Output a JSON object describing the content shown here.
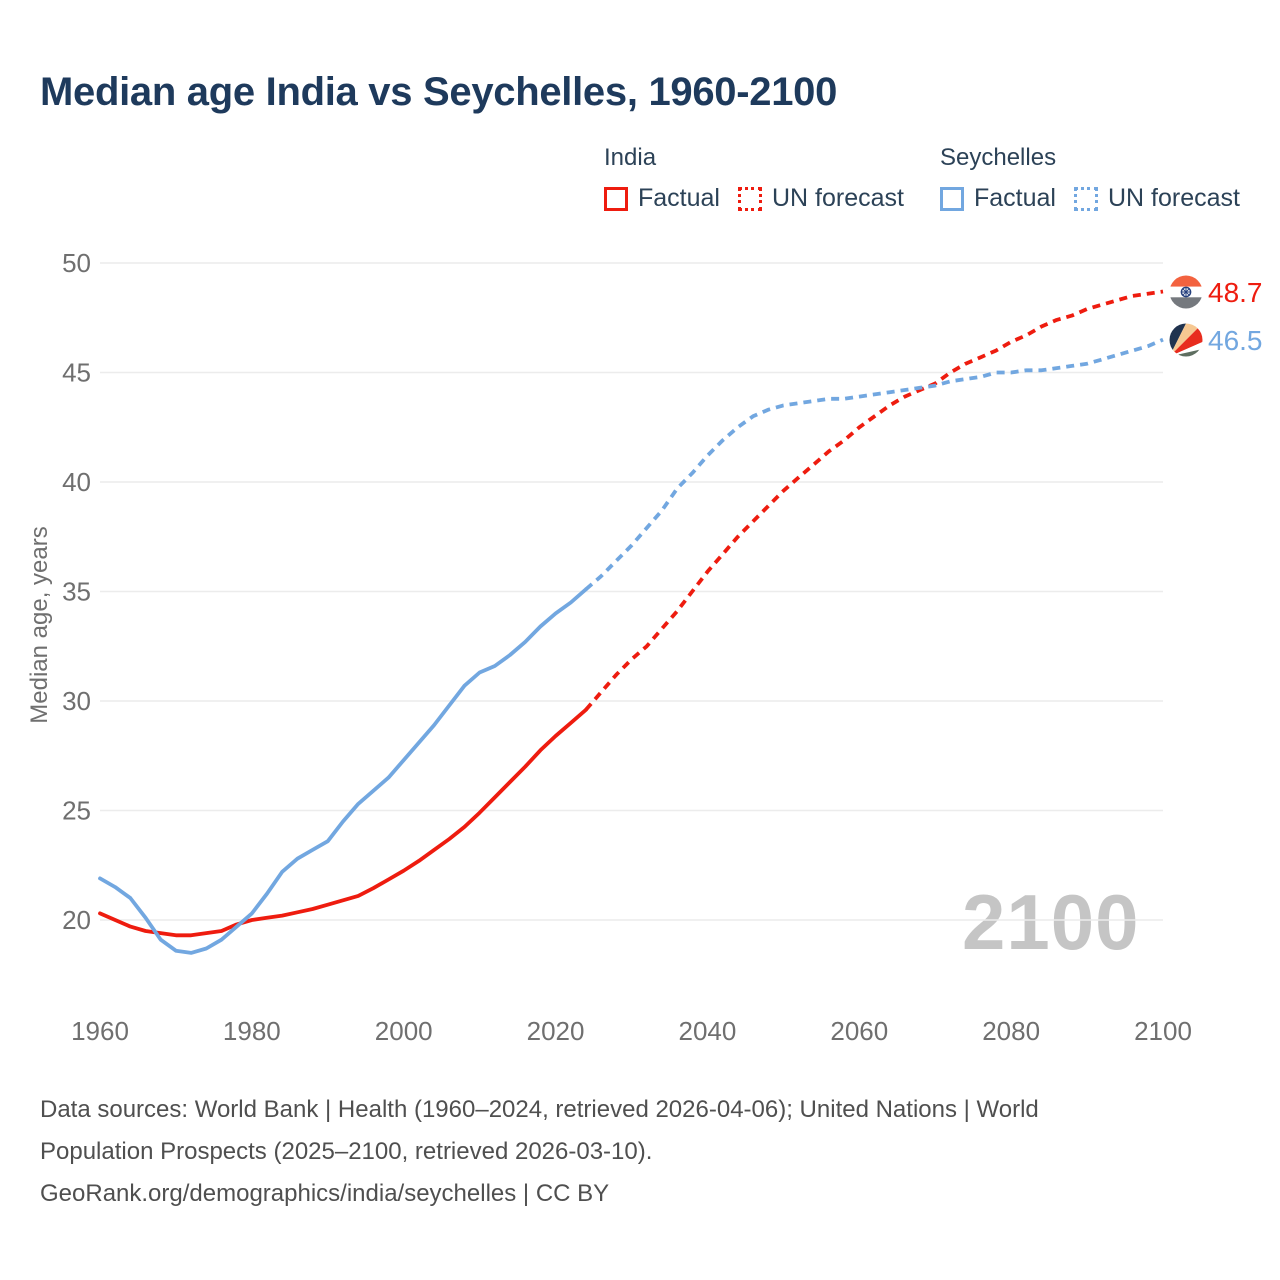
{
  "header": {
    "title": "Median age India vs Seychelles, 1960-2100"
  },
  "legend": {
    "groups": [
      {
        "name": "India",
        "color": "#ee1c0f",
        "items": [
          {
            "label": "Factual",
            "style": "solid"
          },
          {
            "label": "UN forecast",
            "style": "dashed"
          }
        ]
      },
      {
        "name": "Seychelles",
        "color": "#72a7e0",
        "items": [
          {
            "label": "Factual",
            "style": "solid"
          },
          {
            "label": "UN forecast",
            "style": "dashed"
          }
        ]
      }
    ]
  },
  "chart_data": {
    "type": "line",
    "title": "Median age India vs Seychelles, 1960-2100",
    "xlabel": "",
    "ylabel": "Median age, years",
    "xlim": [
      1960,
      2100
    ],
    "ylim": [
      20,
      50
    ],
    "xticks": [
      1960,
      1980,
      2000,
      2020,
      2040,
      2060,
      2080,
      2100
    ],
    "yticks": [
      20,
      25,
      30,
      35,
      40,
      45,
      50
    ],
    "grid": "horizontal",
    "legend_position": "top-right",
    "watermark": "2100",
    "end_labels": {
      "india": "48.7",
      "seychelles": "46.5"
    },
    "colors": {
      "india": "#ee1c0f",
      "seychelles": "#72a7e0",
      "grid": "#ececec",
      "axis_text": "#6f6f6f",
      "title": "#1e3a5c",
      "legend_text": "#2c4257",
      "watermark": "#c5c5c5",
      "footer_text": "#4f4f4f"
    },
    "series": [
      {
        "name": "India Factual",
        "country": "India",
        "segment": "factual",
        "style": "solid",
        "color": "#ee1c0f",
        "points": [
          [
            1960,
            20.3
          ],
          [
            1962,
            20.0
          ],
          [
            1964,
            19.7
          ],
          [
            1966,
            19.5
          ],
          [
            1968,
            19.4
          ],
          [
            1970,
            19.3
          ],
          [
            1972,
            19.3
          ],
          [
            1974,
            19.4
          ],
          [
            1976,
            19.5
          ],
          [
            1978,
            19.8
          ],
          [
            1980,
            20.0
          ],
          [
            1982,
            20.1
          ],
          [
            1984,
            20.2
          ],
          [
            1986,
            20.35
          ],
          [
            1988,
            20.5
          ],
          [
            1990,
            20.7
          ],
          [
            1992,
            20.9
          ],
          [
            1994,
            21.1
          ],
          [
            1996,
            21.45
          ],
          [
            1998,
            21.85
          ],
          [
            2000,
            22.25
          ],
          [
            2002,
            22.7
          ],
          [
            2004,
            23.2
          ],
          [
            2006,
            23.7
          ],
          [
            2008,
            24.25
          ],
          [
            2010,
            24.9
          ],
          [
            2012,
            25.6
          ],
          [
            2014,
            26.3
          ],
          [
            2016,
            27.0
          ],
          [
            2018,
            27.75
          ],
          [
            2020,
            28.4
          ],
          [
            2022,
            29.0
          ],
          [
            2024,
            29.6
          ]
        ]
      },
      {
        "name": "India UN forecast",
        "country": "India",
        "segment": "forecast",
        "style": "dashed",
        "color": "#ee1c0f",
        "points": [
          [
            2024,
            29.6
          ],
          [
            2026,
            30.4
          ],
          [
            2028,
            31.2
          ],
          [
            2030,
            31.9
          ],
          [
            2032,
            32.5
          ],
          [
            2034,
            33.3
          ],
          [
            2036,
            34.1
          ],
          [
            2038,
            35.0
          ],
          [
            2040,
            35.9
          ],
          [
            2042,
            36.7
          ],
          [
            2044,
            37.5
          ],
          [
            2046,
            38.2
          ],
          [
            2048,
            38.9
          ],
          [
            2050,
            39.6
          ],
          [
            2052,
            40.2
          ],
          [
            2054,
            40.8
          ],
          [
            2056,
            41.4
          ],
          [
            2058,
            41.9
          ],
          [
            2060,
            42.5
          ],
          [
            2062,
            43.0
          ],
          [
            2064,
            43.5
          ],
          [
            2066,
            43.9
          ],
          [
            2068,
            44.2
          ],
          [
            2070,
            44.5
          ],
          [
            2072,
            45.0
          ],
          [
            2074,
            45.4
          ],
          [
            2076,
            45.7
          ],
          [
            2078,
            46.0
          ],
          [
            2080,
            46.4
          ],
          [
            2082,
            46.7
          ],
          [
            2084,
            47.1
          ],
          [
            2086,
            47.4
          ],
          [
            2088,
            47.6
          ],
          [
            2090,
            47.9
          ],
          [
            2092,
            48.1
          ],
          [
            2094,
            48.3
          ],
          [
            2096,
            48.5
          ],
          [
            2098,
            48.6
          ],
          [
            2100,
            48.7
          ]
        ]
      },
      {
        "name": "Seychelles Factual",
        "country": "Seychelles",
        "segment": "factual",
        "style": "solid",
        "color": "#72a7e0",
        "points": [
          [
            1960,
            21.9
          ],
          [
            1962,
            21.5
          ],
          [
            1964,
            21.0
          ],
          [
            1966,
            20.1
          ],
          [
            1968,
            19.1
          ],
          [
            1970,
            18.6
          ],
          [
            1972,
            18.5
          ],
          [
            1974,
            18.7
          ],
          [
            1976,
            19.1
          ],
          [
            1978,
            19.7
          ],
          [
            1980,
            20.3
          ],
          [
            1982,
            21.2
          ],
          [
            1984,
            22.2
          ],
          [
            1986,
            22.8
          ],
          [
            1988,
            23.2
          ],
          [
            1990,
            23.6
          ],
          [
            1992,
            24.5
          ],
          [
            1994,
            25.3
          ],
          [
            1996,
            25.9
          ],
          [
            1998,
            26.5
          ],
          [
            2000,
            27.3
          ],
          [
            2002,
            28.1
          ],
          [
            2004,
            28.9
          ],
          [
            2006,
            29.8
          ],
          [
            2008,
            30.7
          ],
          [
            2010,
            31.3
          ],
          [
            2012,
            31.6
          ],
          [
            2014,
            32.1
          ],
          [
            2016,
            32.7
          ],
          [
            2018,
            33.4
          ],
          [
            2020,
            34.0
          ],
          [
            2022,
            34.5
          ],
          [
            2024,
            35.1
          ]
        ]
      },
      {
        "name": "Seychelles UN forecast",
        "country": "Seychelles",
        "segment": "forecast",
        "style": "dashed",
        "color": "#72a7e0",
        "points": [
          [
            2024,
            35.1
          ],
          [
            2026,
            35.7
          ],
          [
            2028,
            36.4
          ],
          [
            2030,
            37.1
          ],
          [
            2032,
            37.9
          ],
          [
            2034,
            38.7
          ],
          [
            2036,
            39.7
          ],
          [
            2038,
            40.4
          ],
          [
            2040,
            41.2
          ],
          [
            2042,
            41.9
          ],
          [
            2044,
            42.5
          ],
          [
            2046,
            43.0
          ],
          [
            2048,
            43.3
          ],
          [
            2050,
            43.5
          ],
          [
            2052,
            43.6
          ],
          [
            2054,
            43.7
          ],
          [
            2056,
            43.8
          ],
          [
            2058,
            43.8
          ],
          [
            2060,
            43.9
          ],
          [
            2062,
            44.0
          ],
          [
            2064,
            44.1
          ],
          [
            2066,
            44.2
          ],
          [
            2068,
            44.3
          ],
          [
            2070,
            44.4
          ],
          [
            2072,
            44.6
          ],
          [
            2074,
            44.7
          ],
          [
            2076,
            44.8
          ],
          [
            2078,
            45.0
          ],
          [
            2080,
            45.0
          ],
          [
            2082,
            45.1
          ],
          [
            2084,
            45.1
          ],
          [
            2086,
            45.2
          ],
          [
            2088,
            45.3
          ],
          [
            2090,
            45.4
          ],
          [
            2092,
            45.6
          ],
          [
            2094,
            45.8
          ],
          [
            2096,
            46.0
          ],
          [
            2098,
            46.2
          ],
          [
            2100,
            46.5
          ]
        ]
      }
    ]
  },
  "footer": {
    "lines": [
      "Data sources: World Bank | Health (1960–2024, retrieved 2026-04-06); United Nations | World",
      "Population Prospects (2025–2100, retrieved 2026-03-10).",
      "GeoRank.org/demographics/india/seychelles | CC BY"
    ]
  }
}
